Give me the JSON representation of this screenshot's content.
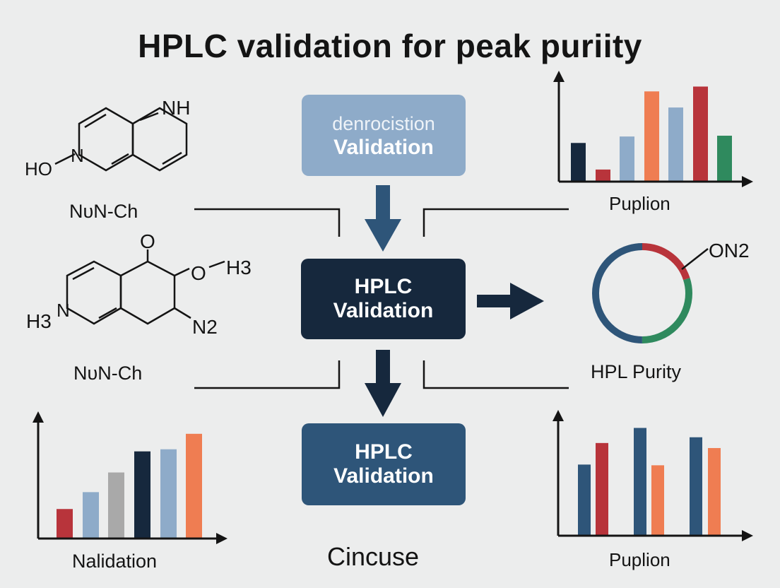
{
  "title": "HPLC validation for peak puriity",
  "boxes": {
    "top": {
      "line1": "denrocistion",
      "line2": "Validation",
      "color": "#8eabc9"
    },
    "middle": {
      "line1": "HPLC",
      "line2": "Validation",
      "color": "#16283d"
    },
    "bottom": {
      "line1": "HPLC",
      "line2": "Validation",
      "color": "#2e5579"
    }
  },
  "labels": {
    "left_upper": "NᴜN-Ch",
    "left_lower": "NᴜN-Ch",
    "chart_top_right": "Puplion",
    "donut": "HPL Purity",
    "chart_bottom_left": "Nalidation",
    "bottom_center": "Cincuse",
    "chart_bottom_right": "Puplion"
  },
  "molecules": {
    "upper": {
      "atoms": [
        "NH",
        "HO",
        "N"
      ]
    },
    "lower": {
      "atoms": [
        "O",
        "O",
        "H3",
        "H3",
        "N",
        "N2"
      ]
    }
  },
  "donut_label": "ON2",
  "arrow_icons": [
    "arrow-down-icon",
    "arrow-right-icon",
    "arrow-down-icon"
  ],
  "colors": {
    "navy": "#16283d",
    "steel": "#2e5579",
    "light_blue": "#8eabc9",
    "orange": "#ef7d52",
    "red": "#b8343b",
    "green": "#2f8a5e",
    "gray": "#a9a9a9"
  },
  "chart_data": [
    {
      "type": "bar",
      "xlabel": "Puplion",
      "values": [
        48,
        15,
        56,
        112,
        92,
        118,
        57
      ],
      "colors": [
        "#16283d",
        "#b8343b",
        "#8eabc9",
        "#ef7d52",
        "#8eabc9",
        "#b8343b",
        "#2f8a5e"
      ],
      "ylim": [
        0,
        150
      ]
    },
    {
      "type": "pie",
      "xlabel": "HPL Purity",
      "values": [
        20,
        30,
        50
      ],
      "colors": [
        "#b8343b",
        "#2f8a5e",
        "#2e5579"
      ]
    },
    {
      "type": "bar",
      "xlabel": "Nalidation",
      "values": [
        42,
        66,
        94,
        124,
        127,
        149
      ],
      "colors": [
        "#b8343b",
        "#8eabc9",
        "#a9a9a9",
        "#16283d",
        "#8eabc9",
        "#ef7d52"
      ],
      "ylim": [
        0,
        180
      ]
    },
    {
      "type": "bar",
      "xlabel": "Puplion",
      "values": [
        99,
        129,
        150,
        98,
        137,
        122
      ],
      "colors": [
        "#2e5579",
        "#b8343b",
        "#2e5579",
        "#ef7d52",
        "#2e5579",
        "#ef7d52"
      ],
      "ylim": [
        0,
        180
      ]
    }
  ]
}
